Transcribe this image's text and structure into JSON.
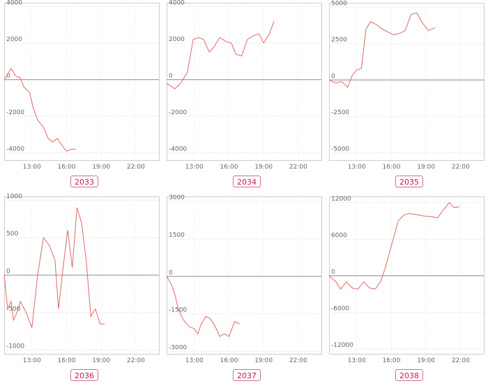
{
  "chart_data": [
    {
      "type": "line",
      "label": "2033",
      "ylim": [
        -4400,
        4200
      ],
      "yticks": [
        4000,
        2000,
        0,
        -2000,
        -4000
      ],
      "xticks": [
        "13:00",
        "16:00",
        "19:00",
        "22:00"
      ],
      "series": [
        {
          "x": [
            10.6,
            11.2,
            11.6,
            12.0,
            12.3,
            12.8,
            13.1,
            13.5,
            14.0,
            14.4,
            14.8,
            15.2,
            15.6,
            16.0,
            16.4,
            16.8
          ],
          "values": [
            0,
            600,
            200,
            100,
            -400,
            -700,
            -1500,
            -2200,
            -2600,
            -3200,
            -3400,
            -3200,
            -3600,
            -3900,
            -3800,
            -3800
          ]
        }
      ],
      "color": "#e06666"
    },
    {
      "type": "line",
      "label": "2034",
      "ylim": [
        -4400,
        4200
      ],
      "yticks": [
        4000,
        2000,
        0,
        -2000,
        -4000
      ],
      "xticks": [
        "13:00",
        "16:00",
        "19:00",
        "22:00"
      ],
      "series": [
        {
          "x": [
            10.6,
            11.3,
            11.8,
            12.4,
            12.9,
            13.4,
            13.8,
            14.3,
            14.7,
            15.2,
            15.7,
            16.2,
            16.6,
            17.1,
            17.6,
            18.1,
            18.6,
            19.0,
            19.5,
            19.9
          ],
          "values": [
            -200,
            -500,
            -200,
            400,
            2200,
            2300,
            2200,
            1500,
            1800,
            2300,
            2100,
            2000,
            1400,
            1300,
            2200,
            2400,
            2500,
            2000,
            2500,
            3200
          ]
        }
      ],
      "color": "#e06666"
    },
    {
      "type": "line",
      "label": "2035",
      "ylim": [
        -5500,
        5300
      ],
      "yticks": [
        5000,
        2500,
        0,
        -2500,
        -5000
      ],
      "xticks": [
        "13:00",
        "16:00",
        "19:00",
        "22:00"
      ],
      "series": [
        {
          "x": [
            10.6,
            11.2,
            11.7,
            12.2,
            12.6,
            13.0,
            13.4,
            13.8,
            14.2,
            14.7,
            15.2,
            15.7,
            16.2,
            16.7,
            17.2,
            17.7,
            18.2,
            18.7,
            19.2,
            19.8
          ],
          "values": [
            0,
            -200,
            -100,
            -500,
            300,
            700,
            800,
            3500,
            4000,
            3800,
            3500,
            3300,
            3100,
            3200,
            3400,
            4500,
            4600,
            3900,
            3400,
            3600
          ]
        }
      ],
      "color": "#e06666"
    },
    {
      "type": "line",
      "label": "2036",
      "ylim": [
        -1050,
        1050
      ],
      "yticks": [
        1000,
        500,
        0,
        -500,
        -1000
      ],
      "xticks": [
        "13:00",
        "16:00",
        "19:00",
        "22:00"
      ],
      "series": [
        {
          "x": [
            10.6,
            10.9,
            11.2,
            11.4,
            11.7,
            12.0,
            12.5,
            13.0,
            13.5,
            14.0,
            14.5,
            15.0,
            15.3,
            15.7,
            16.1,
            16.5,
            16.9,
            17.3,
            17.7,
            18.1,
            18.5,
            18.9,
            19.3
          ],
          "values": [
            0,
            -450,
            -350,
            -600,
            -500,
            -350,
            -500,
            -700,
            0,
            500,
            400,
            200,
            -450,
            100,
            600,
            100,
            900,
            700,
            200,
            -550,
            -450,
            -650,
            -650
          ]
        }
      ],
      "color": "#e06666"
    },
    {
      "type": "line",
      "label": "2037",
      "ylim": [
        -3100,
        3200
      ],
      "yticks": [
        3000,
        1500,
        0,
        -1500,
        -3000
      ],
      "xticks": [
        "13:00",
        "16:00",
        "19:00",
        "22:00"
      ],
      "series": [
        {
          "x": [
            10.6,
            11.0,
            11.3,
            11.6,
            12.0,
            12.5,
            13.0,
            13.3,
            13.6,
            14.0,
            14.4,
            14.8,
            15.2,
            15.6,
            16.0,
            16.5,
            16.9
          ],
          "values": [
            0,
            -300,
            -700,
            -1300,
            -1700,
            -2000,
            -2100,
            -2300,
            -1900,
            -1600,
            -1700,
            -2000,
            -2400,
            -2300,
            -2400,
            -1800,
            -1900
          ]
        }
      ],
      "color": "#e06666"
    },
    {
      "type": "line",
      "label": "2038",
      "ylim": [
        -12800,
        13000
      ],
      "yticks": [
        12000,
        6000,
        0,
        -6000,
        -12000
      ],
      "xticks": [
        "13:00",
        "16:00",
        "19:00",
        "22:00"
      ],
      "series": [
        {
          "x": [
            10.6,
            11.2,
            11.6,
            12.1,
            12.6,
            13.1,
            13.6,
            14.1,
            14.6,
            15.1,
            15.5,
            16.0,
            16.6,
            17.1,
            17.6,
            18.2,
            18.8,
            19.4,
            20.0,
            20.5,
            21.0,
            21.4,
            21.9
          ],
          "values": [
            0,
            -1000,
            -2200,
            -1000,
            -2000,
            -2200,
            -1000,
            -2000,
            -2200,
            -800,
            1500,
            5000,
            9000,
            10000,
            10200,
            10000,
            9800,
            9700,
            9500,
            10800,
            12000,
            11200,
            11300
          ]
        }
      ],
      "color": "#e06666"
    }
  ]
}
